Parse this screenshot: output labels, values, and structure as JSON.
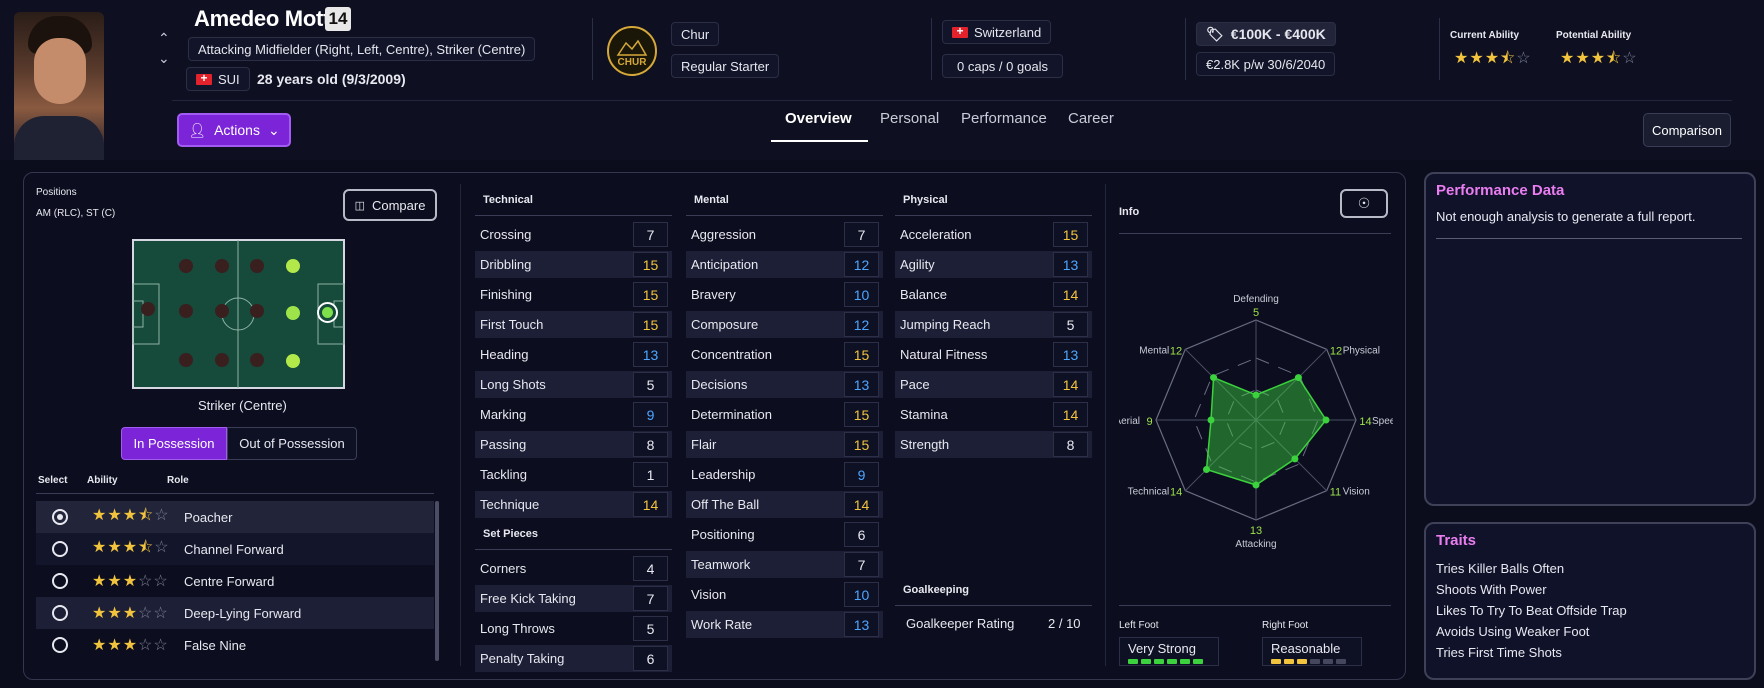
{
  "player": {
    "name": "Amedeo Motta",
    "number": "14",
    "positions_text": "Attacking Midfielder (Right, Left, Centre), Striker (Centre)",
    "nationality_code": "SUI",
    "age_text": "28 years old (9/3/2009)",
    "club_badge_text": "CHUR",
    "club": "Chur",
    "squad_status": "Regular Starter",
    "nation": "Switzerland",
    "caps": "0 caps / 0 goals",
    "value": "€100K - €400K",
    "wage_contract": "€2.8K p/w 30/6/2040",
    "current_ability_label": "Current Ability",
    "potential_ability_label": "Potential Ability",
    "current_ability_stars": 3.5,
    "potential_ability_stars": 3.5
  },
  "header": {
    "actions_label": "Actions",
    "comparison_label": "Comparison",
    "tabs": [
      "Overview",
      "Personal",
      "Performance",
      "Career"
    ],
    "active_tab": "Overview"
  },
  "positions": {
    "title": "Positions",
    "summary": "AM (RLC), ST (C)",
    "compare_label": "Compare",
    "selected_position": "Striker (Centre)",
    "possession_tabs": [
      "In Possession",
      "Out of Possession"
    ],
    "active_possession": "In Possession",
    "role_headers": [
      "Select",
      "Ability",
      "Role"
    ],
    "roles": [
      {
        "name": "Poacher",
        "stars": 3.5,
        "selected": true
      },
      {
        "name": "Channel Forward",
        "stars": 3.5,
        "selected": false
      },
      {
        "name": "Centre Forward",
        "stars": 3,
        "selected": false
      },
      {
        "name": "Deep-Lying Forward",
        "stars": 3,
        "selected": false
      },
      {
        "name": "False Nine",
        "stars": 3,
        "selected": false
      }
    ]
  },
  "attributes": {
    "technical_title": "Technical",
    "technical": [
      {
        "name": "Crossing",
        "value": 7
      },
      {
        "name": "Dribbling",
        "value": 15
      },
      {
        "name": "Finishing",
        "value": 15
      },
      {
        "name": "First Touch",
        "value": 15
      },
      {
        "name": "Heading",
        "value": 13
      },
      {
        "name": "Long Shots",
        "value": 5
      },
      {
        "name": "Marking",
        "value": 9
      },
      {
        "name": "Passing",
        "value": 8
      },
      {
        "name": "Tackling",
        "value": 1
      },
      {
        "name": "Technique",
        "value": 14
      }
    ],
    "set_pieces_title": "Set Pieces",
    "set_pieces": [
      {
        "name": "Corners",
        "value": 4
      },
      {
        "name": "Free Kick Taking",
        "value": 7
      },
      {
        "name": "Long Throws",
        "value": 5
      },
      {
        "name": "Penalty Taking",
        "value": 6
      }
    ],
    "mental_title": "Mental",
    "mental": [
      {
        "name": "Aggression",
        "value": 7
      },
      {
        "name": "Anticipation",
        "value": 12
      },
      {
        "name": "Bravery",
        "value": 10
      },
      {
        "name": "Composure",
        "value": 12
      },
      {
        "name": "Concentration",
        "value": 15
      },
      {
        "name": "Decisions",
        "value": 13
      },
      {
        "name": "Determination",
        "value": 15
      },
      {
        "name": "Flair",
        "value": 15
      },
      {
        "name": "Leadership",
        "value": 9
      },
      {
        "name": "Off The Ball",
        "value": 14
      },
      {
        "name": "Positioning",
        "value": 6
      },
      {
        "name": "Teamwork",
        "value": 7
      },
      {
        "name": "Vision",
        "value": 10
      },
      {
        "name": "Work Rate",
        "value": 13
      }
    ],
    "physical_title": "Physical",
    "physical": [
      {
        "name": "Acceleration",
        "value": 15
      },
      {
        "name": "Agility",
        "value": 13
      },
      {
        "name": "Balance",
        "value": 14
      },
      {
        "name": "Jumping Reach",
        "value": 5
      },
      {
        "name": "Natural Fitness",
        "value": 13
      },
      {
        "name": "Pace",
        "value": 14
      },
      {
        "name": "Stamina",
        "value": 14
      },
      {
        "name": "Strength",
        "value": 8
      }
    ],
    "goalkeeping_title": "Goalkeeping",
    "goalkeeper_rating_label": "Goalkeeper Rating",
    "goalkeeper_rating": "2 / 10"
  },
  "info": {
    "title": "Info",
    "radar": [
      {
        "label": "Defending",
        "value": "5"
      },
      {
        "label": "Physical",
        "value": "12"
      },
      {
        "label": "Speed",
        "value": "14"
      },
      {
        "label": "Vision",
        "value": "11"
      },
      {
        "label": "Attacking",
        "value": "13"
      },
      {
        "label": "Technical",
        "value": "14"
      },
      {
        "label": "Aerial",
        "value": "9"
      },
      {
        "label": "Mental",
        "value": "12"
      }
    ],
    "left_foot_label": "Left Foot",
    "left_foot": "Very Strong",
    "left_foot_level": 6,
    "right_foot_label": "Right Foot",
    "right_foot": "Reasonable",
    "right_foot_level": 3
  },
  "performance": {
    "title": "Performance Data",
    "text": "Not enough analysis to generate a full report."
  },
  "traits": {
    "title": "Traits",
    "items": [
      "Tries Killer Balls Often",
      "Shoots With Power",
      "Likes To Try To Beat Offside Trap",
      "Avoids Using Weaker Foot",
      "Tries First Time Shots"
    ]
  },
  "colors": {
    "accent": "#7b24d8",
    "high": "#f2c43e",
    "mid": "#4da6ff",
    "low": "#e8e8f0",
    "pink": "#ea7df0",
    "radar": "#3bd23d"
  }
}
